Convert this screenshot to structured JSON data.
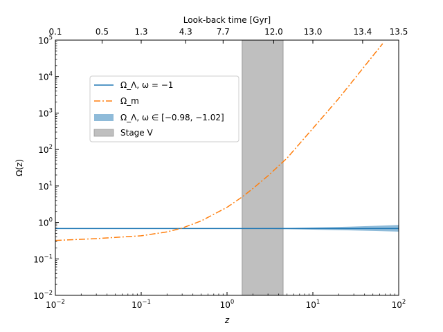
{
  "chart_data": {
    "type": "line",
    "x_scale": "log",
    "y_scale": "log",
    "xlim": [
      0.01,
      100
    ],
    "ylim": [
      0.01,
      100000
    ],
    "xlabel": "z",
    "ylabel": "Ω(z)",
    "top_axis_label": "Look-back time [Gyr]",
    "x_ticks": [
      {
        "value": 0.01,
        "exp": "−2"
      },
      {
        "value": 0.1,
        "exp": "−1"
      },
      {
        "value": 1,
        "exp": "0"
      },
      {
        "value": 10,
        "exp": "1"
      },
      {
        "value": 100,
        "exp": "2"
      }
    ],
    "y_ticks": [
      {
        "value": 0.01,
        "exp": "−2"
      },
      {
        "value": 0.1,
        "exp": "−1"
      },
      {
        "value": 1,
        "exp": "0"
      },
      {
        "value": 10,
        "exp": "1"
      },
      {
        "value": 100,
        "exp": "2"
      },
      {
        "value": 1000,
        "exp": "3"
      },
      {
        "value": 10000,
        "exp": "4"
      },
      {
        "value": 100000,
        "exp": "5"
      }
    ],
    "top_ticks": [
      {
        "z": 0.01,
        "label": "0.1"
      },
      {
        "z": 0.035,
        "label": "0.5"
      },
      {
        "z": 0.1,
        "label": "1.3"
      },
      {
        "z": 0.33,
        "label": "4.3"
      },
      {
        "z": 0.9,
        "label": "7.7"
      },
      {
        "z": 3.5,
        "label": "12.0"
      },
      {
        "z": 10,
        "label": "13.0"
      },
      {
        "z": 38,
        "label": "13.4"
      },
      {
        "z": 100,
        "label": "13.5"
      }
    ],
    "grid": false,
    "legend_position": "upper-left",
    "series": [
      {
        "name": "Ω_Λ, ω = −1",
        "style": "solid",
        "color": "#1f77b4",
        "x": [
          0.01,
          0.1,
          1,
          10,
          100
        ],
        "y": [
          0.68,
          0.68,
          0.68,
          0.68,
          0.68
        ]
      },
      {
        "name": "Ω_m",
        "style": "dash-dot",
        "color": "#ff7f0e",
        "x": [
          0.01,
          0.03,
          0.1,
          0.2,
          0.3,
          0.5,
          1,
          1.5,
          2,
          3,
          5,
          10,
          20,
          50,
          65
        ],
        "y": [
          0.32,
          0.36,
          0.43,
          0.55,
          0.7,
          1.1,
          2.6,
          5,
          8.5,
          19,
          58,
          380,
          2500,
          37000,
          80000
        ]
      }
    ],
    "band": {
      "name": "Ω_Λ, ω ∈ [−0.98, −1.02]",
      "color": "#1f77b4",
      "x": [
        0.01,
        0.5,
        1,
        2,
        5,
        10,
        20,
        50,
        100
      ],
      "y_low": [
        0.68,
        0.679,
        0.676,
        0.67,
        0.655,
        0.635,
        0.615,
        0.585,
        0.56
      ],
      "y_high": [
        0.68,
        0.681,
        0.684,
        0.69,
        0.705,
        0.725,
        0.75,
        0.8,
        0.85
      ]
    },
    "region": {
      "name": "Stage V",
      "color": "#bfbfbf",
      "x_range": [
        1.5,
        4.5
      ]
    }
  }
}
